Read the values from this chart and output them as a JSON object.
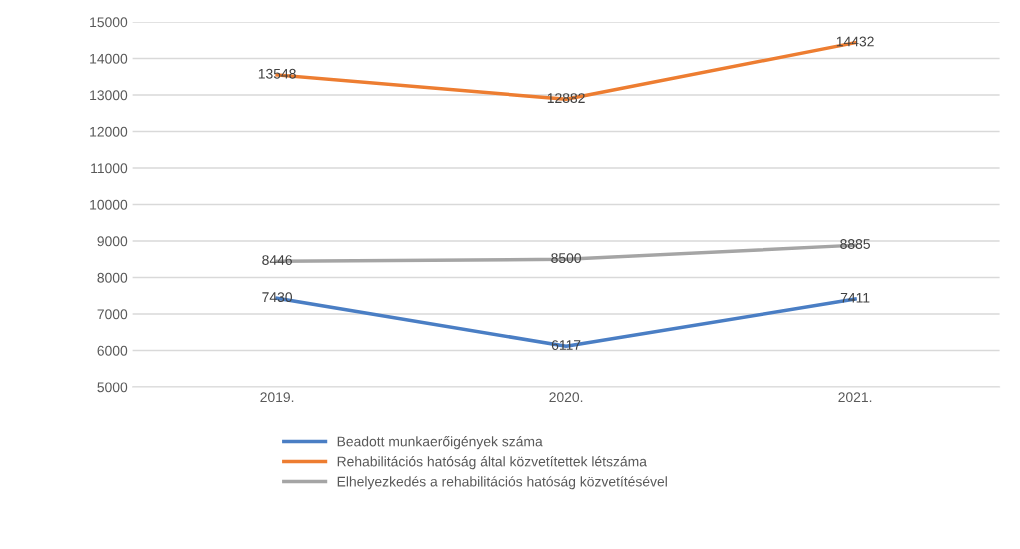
{
  "chart_data": {
    "type": "line",
    "categories": [
      "2019.",
      "2020.",
      "2021."
    ],
    "series": [
      {
        "name": "Beadott munkaerőigények száma",
        "color": "#4a7ec4",
        "values": [
          7430,
          6117,
          7411
        ]
      },
      {
        "name": "Rehabilitációs hatóság által közvetítettek létszáma",
        "color": "#ed7d31",
        "values": [
          13548,
          12882,
          14432
        ]
      },
      {
        "name": "Elhelyezkedés a rehabilitációs hatóság közvetítésével",
        "color": "#a5a5a5",
        "values": [
          8446,
          8500,
          8885
        ]
      }
    ],
    "ylim": [
      5000,
      15000
    ],
    "yticks": [
      5000,
      6000,
      7000,
      8000,
      9000,
      10000,
      11000,
      12000,
      13000,
      14000,
      15000
    ],
    "grid": "y",
    "legend": "bottom",
    "data_labels": true,
    "marker": "none",
    "line_style": "solid"
  }
}
